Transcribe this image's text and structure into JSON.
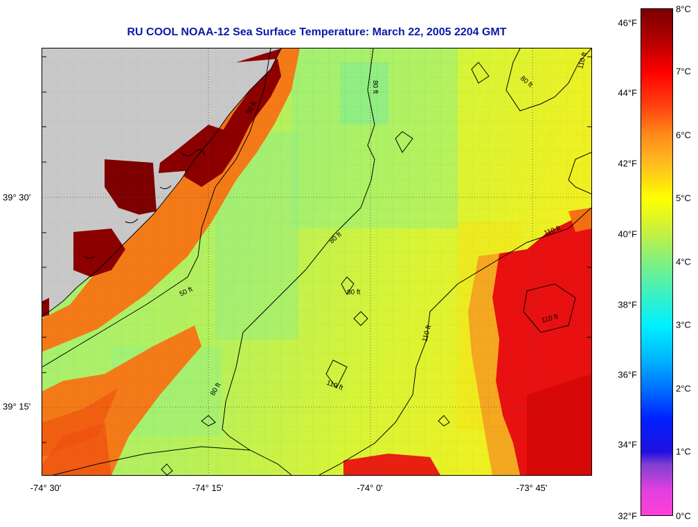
{
  "title": "RU COOL  NOAA-12  Sea Surface Temperature:  March 22, 2005 2204 GMT",
  "longitude_labels": [
    "-74° 30'",
    "-74° 15'",
    "-74° 0'",
    "-73° 45'"
  ],
  "latitude_labels": [
    "39° 30'",
    "39° 15'"
  ],
  "colorbar": {
    "fahrenheit_labels": [
      "46°F",
      "44°F",
      "42°F",
      "40°F",
      "38°F",
      "36°F",
      "34°F",
      "32°F"
    ],
    "celsius_labels": [
      "8°C",
      "7°C",
      "6°C",
      "5°C",
      "4°C",
      "3°C",
      "2°C",
      "1°C",
      "0°C"
    ],
    "range_c": [
      0,
      8
    ]
  },
  "contour_labels": {
    "c50a": "50 ft",
    "c50b": "50 ft",
    "c80a": "80 ft",
    "c80b": "80 ft",
    "c80c": "80 ft",
    "c80d": "80 ft",
    "c80e": "80 ft",
    "c110a": "110 ft",
    "c110b": "110 ft",
    "c110c": "110 ft",
    "c110d": "110 ft",
    "c110e": "110 ft"
  },
  "colors": {
    "land": "#c8c8c8",
    "title": "#0a1aa8",
    "warm_core": "#e80000",
    "coastal_warm": "#8a0000",
    "shelf_mid": "#c8f040"
  }
}
